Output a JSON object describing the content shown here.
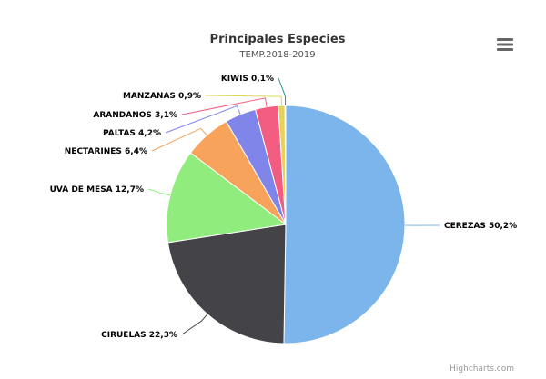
{
  "chart_data": {
    "type": "pie",
    "title": "Principales Especies",
    "subtitle": "TEMP.2018-2019",
    "slices": [
      {
        "name": "CEREZAS",
        "value": 50.2,
        "label": "CEREZAS 50,2%",
        "color": "#7cb5ec"
      },
      {
        "name": "CIRUELAS",
        "value": 22.3,
        "label": "CIRUELAS 22,3%",
        "color": "#434348"
      },
      {
        "name": "UVA DE MESA",
        "value": 12.7,
        "label": "UVA DE MESA 12,7%",
        "color": "#90ed7d"
      },
      {
        "name": "NECTARINES",
        "value": 6.4,
        "label": "NECTARINES 6,4%",
        "color": "#f7a35c"
      },
      {
        "name": "PALTAS",
        "value": 4.2,
        "label": "PALTAS 4,2%",
        "color": "#8085e9"
      },
      {
        "name": "ARANDANOS",
        "value": 3.1,
        "label": "ARANDANOS 3,1%",
        "color": "#f15c80"
      },
      {
        "name": "MANZANAS",
        "value": 0.9,
        "label": "MANZANAS 0,9%",
        "color": "#e4d354"
      },
      {
        "name": "KIWIS",
        "value": 0.1,
        "label": "KIWIS 0,1%",
        "color": "#2b908f"
      }
    ]
  },
  "credits": "Highcharts.com",
  "menu_icon": "hamburger-menu-icon"
}
